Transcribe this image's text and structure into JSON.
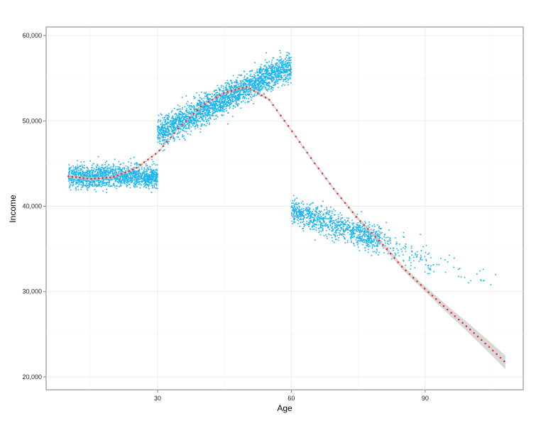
{
  "chart_data": {
    "type": "scatter",
    "title": "",
    "xlabel": "Age",
    "ylabel": "Income",
    "xlim": [
      5,
      112
    ],
    "ylim": [
      18500,
      61000
    ],
    "x_ticks": [
      30,
      60,
      90
    ],
    "x_minor_ticks": [
      15,
      45,
      75,
      105
    ],
    "y_ticks": [
      20000,
      30000,
      40000,
      50000,
      60000
    ],
    "y_minor_ticks": [
      25000,
      35000,
      45000,
      55000
    ],
    "grid": true,
    "legend": "none",
    "point_color": "#1EB4F0",
    "trend_color": "#E8281E",
    "band_color": "#C8C8C8",
    "clusters": [
      {
        "x_range": [
          10,
          30
        ],
        "y_start": 43500,
        "y_end": 43500,
        "spread": 650,
        "count": 1500
      },
      {
        "x_range": [
          30,
          60
        ],
        "y_start": 48500,
        "y_end": 56500,
        "spread": 850,
        "count": 2400
      },
      {
        "x_range": [
          60,
          80
        ],
        "y_start": 39500,
        "y_end": 36000,
        "spread": 800,
        "count": 950
      },
      {
        "x_range": [
          80,
          92
        ],
        "y_start": 35800,
        "y_end": 33200,
        "spread": 900,
        "count": 120
      },
      {
        "x_range": [
          92,
          108
        ],
        "y_start": 33500,
        "y_end": 30500,
        "spread": 900,
        "count": 25
      }
    ],
    "trend": {
      "x": [
        10,
        15,
        20,
        25,
        30,
        35,
        40,
        45,
        50,
        55,
        60,
        65,
        70,
        75,
        80,
        85,
        90,
        95,
        100,
        105,
        108
      ],
      "y": [
        43500,
        43200,
        43400,
        44400,
        46300,
        49300,
        51800,
        53300,
        54000,
        52500,
        48900,
        45200,
        41700,
        38500,
        35800,
        32800,
        30300,
        27900,
        25600,
        23200,
        21700
      ]
    },
    "band": {
      "x": [
        10,
        30,
        50,
        70,
        80,
        85,
        90,
        95,
        100,
        105,
        108
      ],
      "half_width": [
        200,
        120,
        140,
        170,
        230,
        260,
        320,
        430,
        560,
        700,
        800
      ]
    }
  }
}
